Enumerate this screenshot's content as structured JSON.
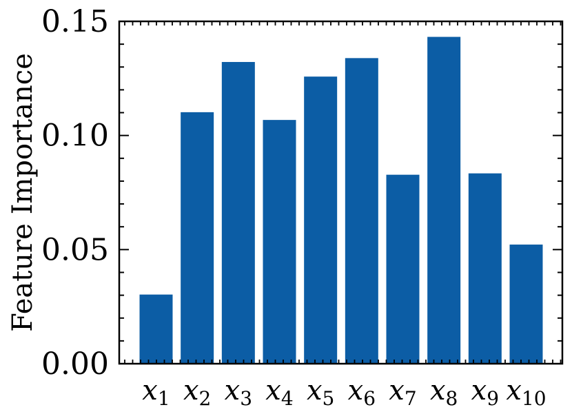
{
  "chart_data": {
    "type": "bar",
    "categories": [
      {
        "base": "x",
        "sub": "1"
      },
      {
        "base": "x",
        "sub": "2"
      },
      {
        "base": "x",
        "sub": "3"
      },
      {
        "base": "x",
        "sub": "4"
      },
      {
        "base": "x",
        "sub": "5"
      },
      {
        "base": "x",
        "sub": "6"
      },
      {
        "base": "x",
        "sub": "7"
      },
      {
        "base": "x",
        "sub": "8"
      },
      {
        "base": "x",
        "sub": "9"
      },
      {
        "base": "x",
        "sub": "10"
      }
    ],
    "values": [
      0.0303,
      0.1102,
      0.1322,
      0.1068,
      0.1258,
      0.1339,
      0.0828,
      0.1432,
      0.0834,
      0.0522
    ],
    "title": "",
    "xlabel": "",
    "ylabel": "Feature Importance",
    "ylim": [
      0,
      0.15
    ],
    "yticks": [
      "0.00",
      "0.05",
      "0.10",
      "0.15"
    ],
    "bar_color": "#0c5da5",
    "grid": false,
    "legend": "none"
  }
}
